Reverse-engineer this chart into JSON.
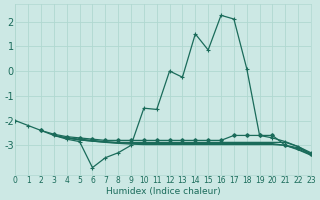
{
  "bg_color": "#cce8e4",
  "grid_color": "#b0d8d0",
  "line_color": "#1a6b5a",
  "xlabel": "Humidex (Indice chaleur)",
  "xlim": [
    0,
    23
  ],
  "ylim": [
    -4.2,
    2.7
  ],
  "yticks": [
    -3,
    -2,
    -1,
    0,
    1,
    2
  ],
  "xticks": [
    0,
    1,
    2,
    3,
    4,
    5,
    6,
    7,
    8,
    9,
    10,
    11,
    12,
    13,
    14,
    15,
    16,
    17,
    18,
    19,
    20,
    21,
    22,
    23
  ],
  "line_main_x": [
    0,
    1,
    2,
    3,
    4,
    5,
    6,
    7,
    8,
    9,
    10,
    11,
    12,
    13,
    14,
    15,
    16,
    17,
    18,
    19,
    20,
    21,
    22,
    23
  ],
  "line_main_y": [
    -2.0,
    -2.2,
    -2.4,
    -2.6,
    -2.75,
    -2.85,
    -3.9,
    -3.5,
    -3.3,
    -3.0,
    -1.5,
    -1.55,
    0.0,
    -0.25,
    1.5,
    0.85,
    2.25,
    2.1,
    0.1,
    -2.6,
    -2.7,
    -2.85,
    -3.05,
    -3.3
  ],
  "line_a_x": [
    2,
    3,
    4,
    5,
    6,
    7,
    8,
    9,
    10,
    11,
    12,
    13,
    14,
    15,
    16,
    17,
    18,
    19,
    20,
    21,
    22,
    23
  ],
  "line_a_y": [
    -2.4,
    -2.55,
    -2.65,
    -2.7,
    -2.75,
    -2.8,
    -2.8,
    -2.8,
    -2.8,
    -2.8,
    -2.8,
    -2.8,
    -2.8,
    -2.8,
    -2.8,
    -2.6,
    -2.6,
    -2.6,
    -2.6,
    -3.0,
    -3.1,
    -3.35
  ],
  "line_b_x": [
    3,
    4,
    5,
    6,
    7,
    8,
    9,
    10,
    11,
    12,
    13,
    14,
    15,
    16,
    17,
    18,
    19,
    20,
    21,
    22,
    23
  ],
  "line_b_y": [
    -2.6,
    -2.7,
    -2.75,
    -2.8,
    -2.85,
    -2.88,
    -2.88,
    -2.88,
    -2.88,
    -2.88,
    -2.88,
    -2.88,
    -2.88,
    -2.88,
    -2.88,
    -2.88,
    -2.88,
    -2.88,
    -2.88,
    -3.05,
    -3.35
  ],
  "line_c_x": [
    3,
    4,
    5,
    6,
    7,
    8,
    9,
    10,
    11,
    12,
    13,
    14,
    15,
    16,
    17,
    18,
    19,
    20,
    21,
    22,
    23
  ],
  "line_c_y": [
    -2.6,
    -2.7,
    -2.78,
    -2.83,
    -2.87,
    -2.9,
    -2.92,
    -2.93,
    -2.93,
    -2.93,
    -2.93,
    -2.93,
    -2.93,
    -2.93,
    -2.93,
    -2.93,
    -2.93,
    -2.93,
    -3.0,
    -3.15,
    -3.38
  ],
  "line_d_x": [
    4,
    5,
    6,
    7,
    8,
    9,
    10,
    11,
    12,
    13,
    14,
    15,
    16,
    17,
    18,
    19,
    20,
    21,
    22,
    23
  ],
  "line_d_y": [
    -2.7,
    -2.78,
    -2.83,
    -2.88,
    -2.92,
    -2.95,
    -2.97,
    -2.97,
    -2.97,
    -2.97,
    -2.97,
    -2.97,
    -2.97,
    -2.97,
    -2.97,
    -2.97,
    -2.97,
    -3.0,
    -3.18,
    -3.4
  ]
}
